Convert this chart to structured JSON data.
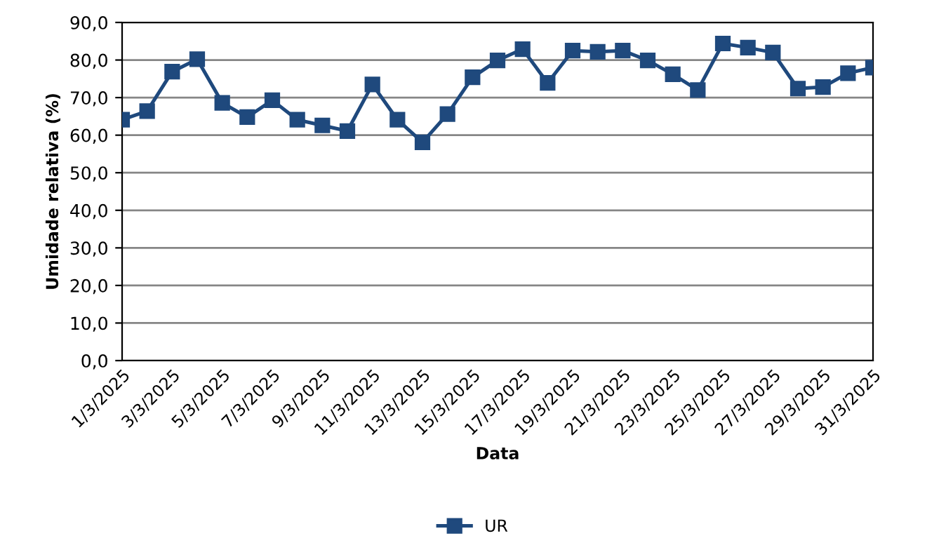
{
  "chart_data": {
    "type": "line",
    "xlabel": "Data",
    "ylabel": "Umidade relativa (%)",
    "categories": [
      "1/3/2025",
      null,
      "3/3/2025",
      null,
      "5/3/2025",
      null,
      "7/3/2025",
      null,
      "9/3/2025",
      null,
      "11/3/2025",
      null,
      "13/3/2025",
      null,
      "15/3/2025",
      null,
      "17/3/2025",
      null,
      "19/3/2025",
      null,
      "21/3/2025",
      null,
      "23/3/2025",
      null,
      "25/3/2025",
      null,
      "27/3/2025",
      null,
      "29/3/2025",
      null,
      "31/3/2025"
    ],
    "series": [
      {
        "name": "UR",
        "color": "#1f497d",
        "values": [
          64.1,
          66.4,
          76.9,
          80.2,
          68.6,
          64.8,
          69.3,
          64.1,
          62.6,
          61.1,
          73.5,
          64.1,
          58.1,
          65.6,
          75.4,
          79.9,
          82.9,
          73.9,
          82.5,
          82.2,
          82.5,
          79.9,
          76.2,
          72.0,
          84.4,
          83.3,
          82.0,
          72.4,
          72.8,
          76.5,
          78.0
        ]
      }
    ],
    "ylim": [
      0,
      90
    ],
    "yticks": [
      {
        "value": 0,
        "label": "0,0"
      },
      {
        "value": 10,
        "label": "10,0"
      },
      {
        "value": 20,
        "label": "20,0"
      },
      {
        "value": 30,
        "label": "30,0"
      },
      {
        "value": 40,
        "label": "40,0"
      },
      {
        "value": 50,
        "label": "50,0"
      },
      {
        "value": 60,
        "label": "60,0"
      },
      {
        "value": 70,
        "label": "70,0"
      },
      {
        "value": 80,
        "label": "80,0"
      },
      {
        "value": 90,
        "label": "90,0"
      }
    ],
    "grid": "y",
    "legend": "bottom",
    "marker": "square",
    "line_style": "solid"
  }
}
